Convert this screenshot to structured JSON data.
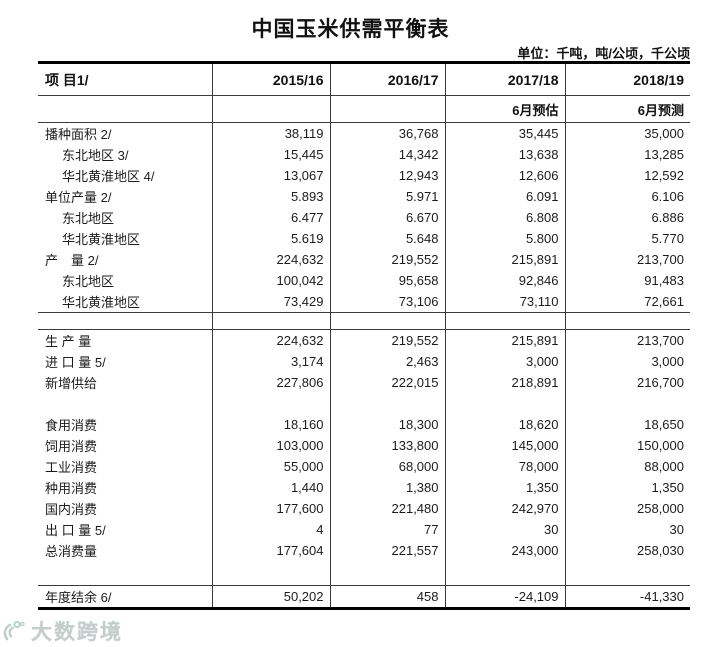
{
  "page": {
    "background": "#ffffff",
    "text_color": "#1c1c1c",
    "thin_line_color": "#3c3c3c",
    "heavy_border_color": "#000000",
    "watermark_color": "#c4cdcb"
  },
  "title": "中国玉米供需平衡表",
  "unit_note": "单位：千吨，吨/公顷，千公顷",
  "watermark": {
    "text": "大数跨境",
    "icon": "dashu-kuajing-logo"
  },
  "chart_data": {
    "type": "table",
    "title": "中国玉米供需平衡表",
    "unit_note": "单位：千吨，吨/公顷，千公顷",
    "columns": [
      "项 目1/",
      "2015/16",
      "2016/17",
      "2017/18",
      "2018/19"
    ],
    "subcolumns": [
      "",
      "",
      "",
      "6月预估",
      "6月预测"
    ],
    "sections": [
      {
        "name": "area-yield-production",
        "rows": [
          {
            "label": "播种面积 2/",
            "indent": 0,
            "values": [
              "38,119",
              "36,768",
              "35,445",
              "35,000"
            ]
          },
          {
            "label": "东北地区 3/",
            "indent": 1,
            "values": [
              "15,445",
              "14,342",
              "13,638",
              "13,285"
            ]
          },
          {
            "label": "华北黄淮地区 4/",
            "indent": 1,
            "values": [
              "13,067",
              "12,943",
              "12,606",
              "12,592"
            ]
          },
          {
            "label": "单位产量 2/",
            "indent": 0,
            "values": [
              "5.893",
              "5.971",
              "6.091",
              "6.106"
            ]
          },
          {
            "label": "东北地区",
            "indent": 1,
            "values": [
              "6.477",
              "6.670",
              "6.808",
              "6.886"
            ]
          },
          {
            "label": "华北黄淮地区",
            "indent": 1,
            "values": [
              "5.619",
              "5.648",
              "5.800",
              "5.770"
            ]
          },
          {
            "label": "产　量 2/",
            "indent": 0,
            "values": [
              "224,632",
              "219,552",
              "215,891",
              "213,700"
            ]
          },
          {
            "label": "东北地区",
            "indent": 1,
            "values": [
              "100,042",
              "95,658",
              "92,846",
              "91,483"
            ]
          },
          {
            "label": "华北黄淮地区",
            "indent": 1,
            "values": [
              "73,429",
              "73,106",
              "73,110",
              "72,661"
            ]
          }
        ]
      },
      {
        "name": "supply",
        "rows": [
          {
            "label": "生 产 量",
            "indent": 0,
            "values": [
              "224,632",
              "219,552",
              "215,891",
              "213,700"
            ]
          },
          {
            "label": "进 口 量 5/",
            "indent": 0,
            "values": [
              "3,174",
              "2,463",
              "3,000",
              "3,000"
            ]
          },
          {
            "label": "新增供给",
            "indent": 0,
            "values": [
              "227,806",
              "222,015",
              "218,891",
              "216,700"
            ]
          }
        ]
      },
      {
        "name": "consumption",
        "rows": [
          {
            "label": "食用消费",
            "indent": 0,
            "values": [
              "18,160",
              "18,300",
              "18,620",
              "18,650"
            ]
          },
          {
            "label": "饲用消费",
            "indent": 0,
            "values": [
              "103,000",
              "133,800",
              "145,000",
              "150,000"
            ]
          },
          {
            "label": "工业消费",
            "indent": 0,
            "values": [
              "55,000",
              "68,000",
              "78,000",
              "88,000"
            ]
          },
          {
            "label": "种用消费",
            "indent": 0,
            "values": [
              "1,440",
              "1,380",
              "1,350",
              "1,350"
            ]
          },
          {
            "label": "国内消费",
            "indent": 0,
            "values": [
              "177,600",
              "221,480",
              "242,970",
              "258,000"
            ]
          },
          {
            "label": "出 口 量 5/",
            "indent": 0,
            "values": [
              "4",
              "77",
              "30",
              "30"
            ]
          },
          {
            "label": "总消费量",
            "indent": 0,
            "values": [
              "177,604",
              "221,557",
              "243,000",
              "258,030"
            ]
          }
        ]
      },
      {
        "name": "annual-balance",
        "rows": [
          {
            "label": "年度结余 6/",
            "indent": 0,
            "values": [
              "50,202",
              "458",
              "-24,109",
              "-41,330"
            ]
          }
        ]
      }
    ]
  }
}
